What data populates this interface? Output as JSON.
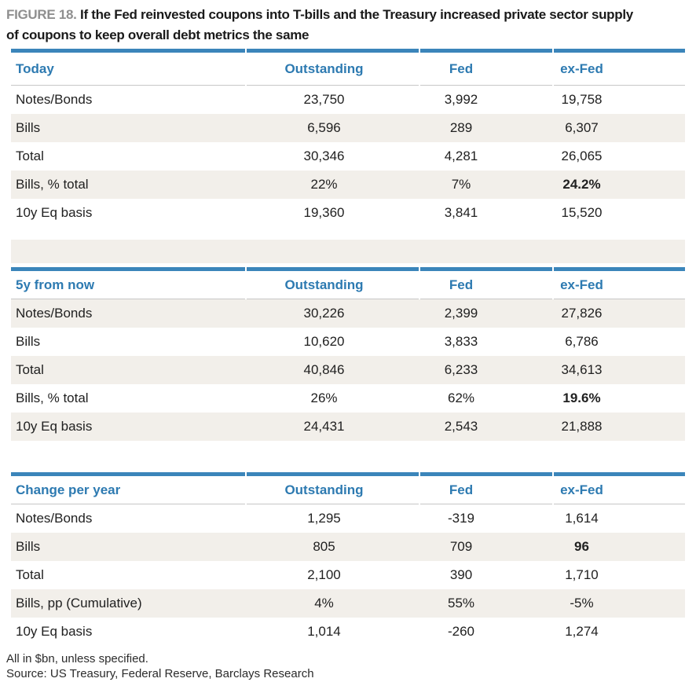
{
  "figure": {
    "label": "FIGURE 18.",
    "title_line1": "If the Fed reinvested coupons into T-bills and the Treasury increased private sector supply",
    "title_line2": "of coupons to keep overall debt metrics the same"
  },
  "columns": [
    "Outstanding",
    "Fed",
    "ex-Fed"
  ],
  "tables": [
    {
      "header": "Today",
      "rows": [
        {
          "label": "Notes/Bonds",
          "values": [
            "23,750",
            "3,992",
            "19,758"
          ]
        },
        {
          "label": "Bills",
          "values": [
            "6,596",
            "289",
            "6,307"
          ]
        },
        {
          "label": "Total",
          "values": [
            "30,346",
            "4,281",
            "26,065"
          ]
        },
        {
          "label": "Bills, % total",
          "values": [
            "22%",
            "7%",
            "24.2%"
          ]
        },
        {
          "label": "10y Eq basis",
          "values": [
            "19,360",
            "3,841",
            "15,520"
          ]
        }
      ]
    },
    {
      "header": "5y from now",
      "rows": [
        {
          "label": "Notes/Bonds",
          "values": [
            "30,226",
            "2,399",
            "27,826"
          ]
        },
        {
          "label": "Bills",
          "values": [
            "10,620",
            "3,833",
            "6,786"
          ]
        },
        {
          "label": "Total",
          "values": [
            "40,846",
            "6,233",
            "34,613"
          ]
        },
        {
          "label": "Bills, % total",
          "values": [
            "26%",
            "62%",
            "19.6%"
          ]
        },
        {
          "label": "10y Eq basis",
          "values": [
            "24,431",
            "2,543",
            "21,888"
          ]
        }
      ]
    },
    {
      "header": "Change per year",
      "rows": [
        {
          "label": "Notes/Bonds",
          "values": [
            "1,295",
            "-319",
            "1,614"
          ]
        },
        {
          "label": "Bills",
          "values": [
            "805",
            "709",
            "96"
          ]
        },
        {
          "label": "Total",
          "values": [
            "2,100",
            "390",
            "1,710"
          ]
        },
        {
          "label": "Bills, pp (Cumulative)",
          "values": [
            "4%",
            "55%",
            "-5%"
          ]
        },
        {
          "label": "10y Eq basis",
          "values": [
            "1,014",
            "-260",
            "1,274"
          ]
        }
      ]
    }
  ],
  "footnotes": [
    "All in $bn, unless specified.",
    "Source: US Treasury, Federal Reserve, Barclays Research"
  ],
  "colors": {
    "accent_blue_text": "#2d7ab1",
    "accent_blue_bar": "#3b85ba",
    "row_shade": "#f2efea",
    "rule_gray": "#c7c7c7"
  }
}
